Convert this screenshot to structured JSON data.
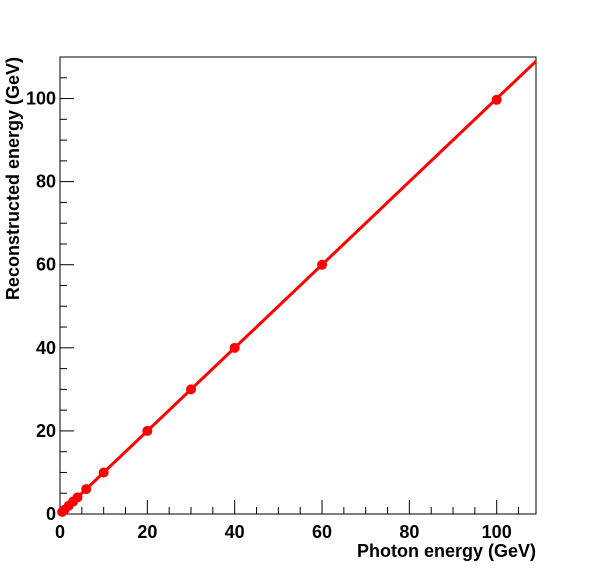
{
  "chart_data": {
    "type": "scatter",
    "title": "",
    "xlabel": "Photon energy (GeV)",
    "ylabel": "Reconstructed energy (GeV)",
    "xlim": [
      0,
      109
    ],
    "ylim": [
      0,
      110
    ],
    "x_major_ticks": [
      0,
      20,
      40,
      60,
      80,
      100
    ],
    "y_major_ticks": [
      0,
      20,
      40,
      60,
      80,
      100
    ],
    "x_tick_labels": [
      "0",
      "20",
      "40",
      "60",
      "80",
      "100"
    ],
    "y_tick_labels": [
      "0",
      "20",
      "40",
      "60",
      "80",
      "100"
    ],
    "grid": false,
    "legend": "none",
    "series": [
      {
        "marker_color": "#ff0000",
        "x": [
          0.5,
          1,
          2,
          3,
          4,
          6,
          10,
          20,
          30,
          40,
          60,
          100
        ],
        "y": [
          0.5,
          1,
          2,
          3,
          4,
          6,
          10,
          20,
          30,
          40,
          60,
          99.7
        ]
      }
    ],
    "fit_line": {
      "color": "#ff0000",
      "x": [
        0,
        109
      ],
      "y": [
        0,
        109
      ]
    }
  }
}
